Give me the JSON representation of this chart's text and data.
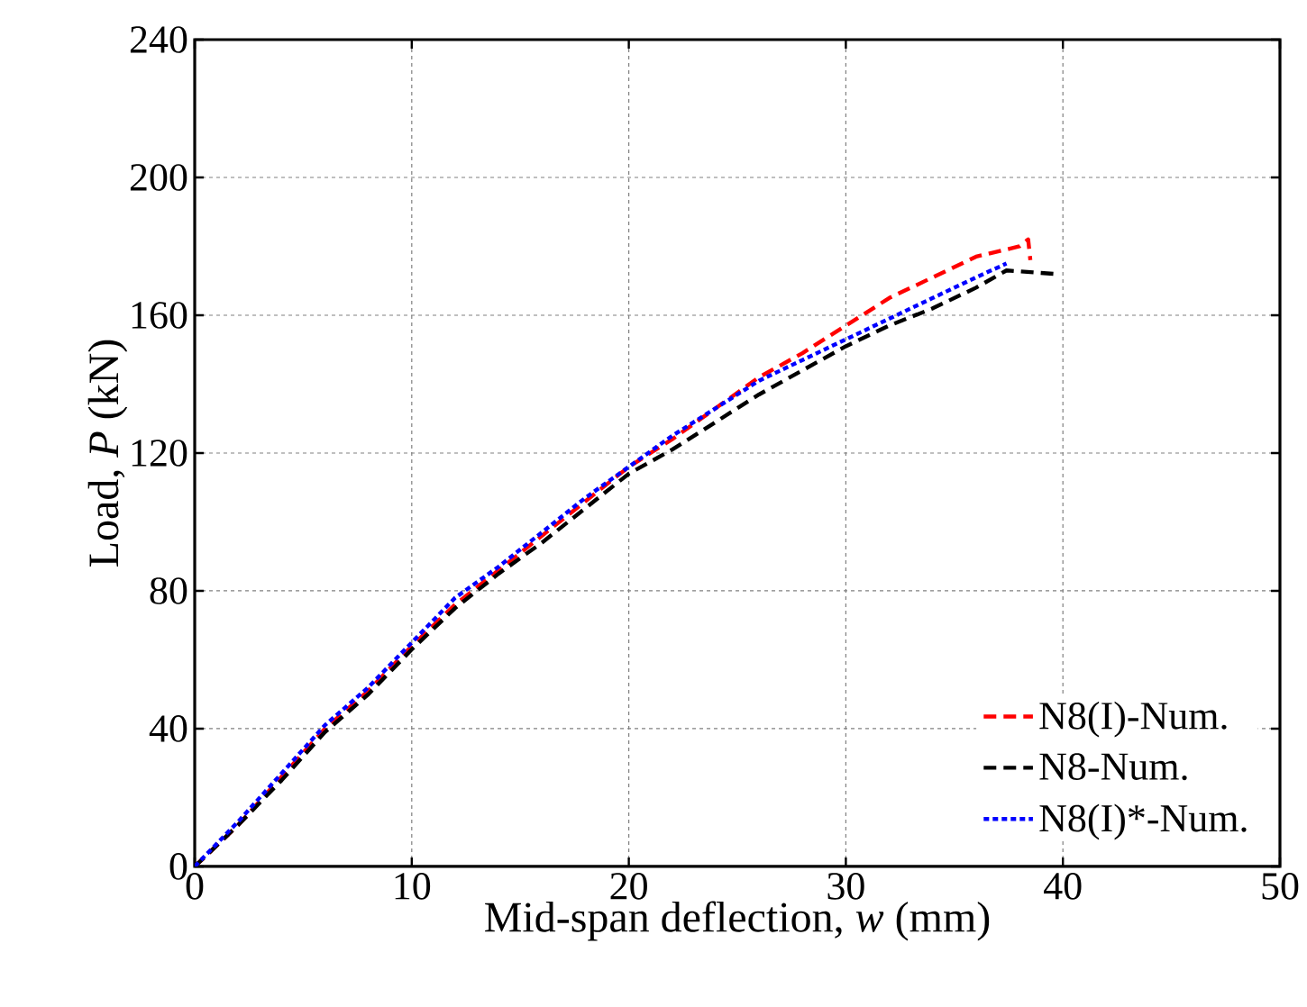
{
  "chart_data": {
    "type": "line",
    "xlabel": "Mid-span deflection, *w* (mm)",
    "ylabel": "Load, *P* (kN)",
    "xlim": [
      0,
      50
    ],
    "ylim": [
      0,
      240
    ],
    "xticks": [
      0,
      10,
      20,
      30,
      40,
      50
    ],
    "yticks": [
      0,
      40,
      80,
      120,
      160,
      200,
      240
    ],
    "grid": true,
    "legend": "bottom right",
    "series": [
      {
        "name": "N8(I)-Num.",
        "color": "#ff0000",
        "line_style": "dashed",
        "x": [
          0,
          2,
          4,
          6,
          8,
          10,
          12,
          14,
          16,
          18,
          20,
          22,
          24,
          26,
          28,
          30,
          32,
          34,
          36,
          38,
          38.4,
          38.5
        ],
        "values": [
          0,
          12,
          26,
          40,
          51,
          64,
          76,
          86,
          96,
          106,
          116,
          124,
          133,
          142,
          149,
          157,
          165,
          171,
          177,
          180,
          182,
          176
        ]
      },
      {
        "name": "N8-Num.",
        "color": "#000000",
        "line_style": "dashed",
        "x": [
          0,
          2,
          4,
          6,
          8,
          10,
          12,
          14,
          16,
          18,
          20,
          22,
          24,
          26,
          28,
          30,
          32,
          34,
          36,
          37.4,
          39.6
        ],
        "values": [
          0,
          12,
          25,
          39,
          50,
          63,
          75,
          85,
          94,
          104,
          114,
          121,
          129,
          137,
          144,
          151,
          157,
          162,
          168,
          173,
          172
        ]
      },
      {
        "name": "N8(I)*-Num.",
        "color": "#0000ff",
        "line_style": "dotted",
        "x": [
          0,
          2,
          4,
          6,
          8,
          10,
          12,
          14,
          16,
          18,
          20,
          22,
          24,
          26,
          28,
          30,
          32,
          34,
          36,
          37.4
        ],
        "values": [
          0,
          13,
          27,
          41,
          52,
          65,
          78,
          87,
          97,
          107,
          116,
          125,
          133,
          141,
          147,
          153,
          159,
          165,
          171,
          175
        ]
      }
    ]
  }
}
